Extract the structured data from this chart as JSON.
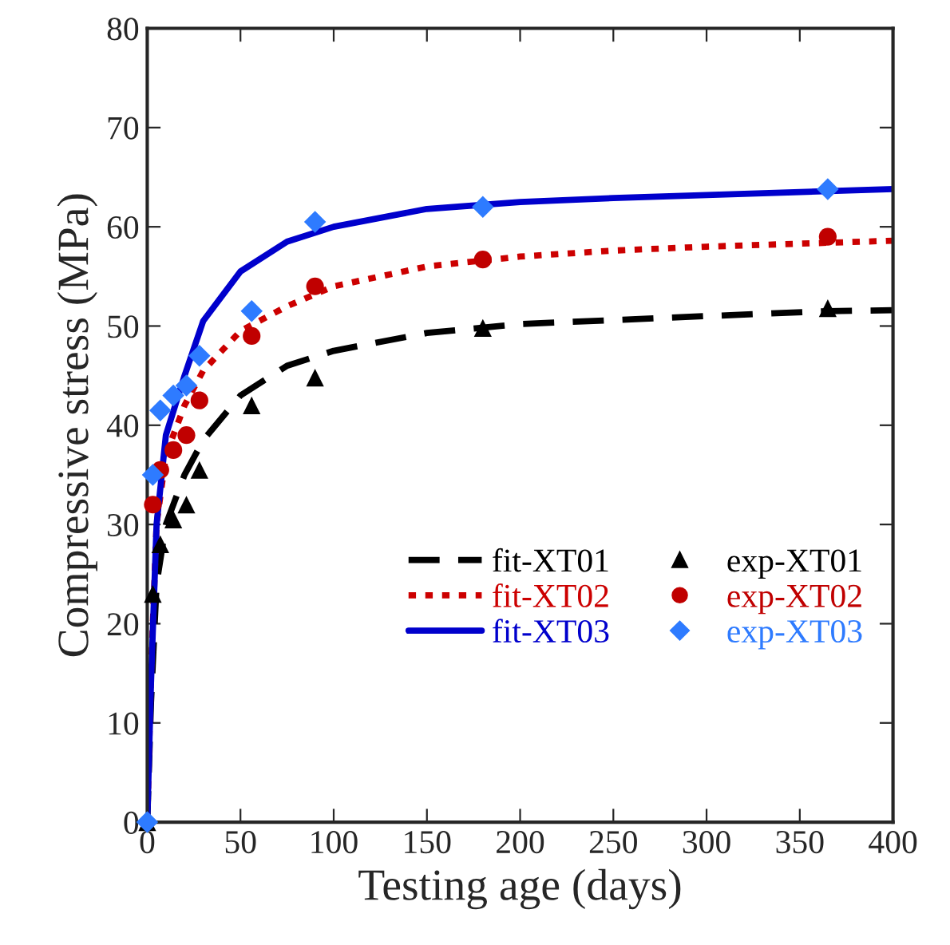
{
  "chart_data": {
    "type": "line",
    "xlabel": "Testing age (days)",
    "ylabel": "Compressive stress (MPa)",
    "xlim": [
      0,
      400
    ],
    "xticks": [
      0,
      50,
      100,
      150,
      200,
      250,
      300,
      350,
      400
    ],
    "ylim": [
      0,
      80
    ],
    "yticks": [
      0,
      10,
      20,
      30,
      40,
      50,
      60,
      70,
      80
    ],
    "grid": false,
    "legend": "bottom right",
    "series": [
      {
        "name": "fit-XT01",
        "line_style": "dashed",
        "marker": "none",
        "color": "#000000",
        "x": [
          0,
          2,
          5,
          10,
          20,
          30,
          50,
          75,
          100,
          150,
          200,
          250,
          300,
          365,
          400
        ],
        "values": [
          0,
          12,
          24,
          30,
          35,
          38.5,
          43,
          46,
          47.5,
          49.3,
          50.2,
          50.6,
          51,
          51.5,
          51.6
        ]
      },
      {
        "name": "fit-XT02",
        "line_style": "dotted",
        "marker": "none",
        "color": "#cc0000",
        "x": [
          0,
          2,
          5,
          10,
          20,
          30,
          50,
          75,
          100,
          150,
          200,
          250,
          300,
          400
        ],
        "values": [
          0,
          15,
          30,
          37,
          42,
          45.5,
          49.5,
          52,
          54,
          56,
          57,
          57.6,
          58,
          58.6
        ]
      },
      {
        "name": "fit-XT03",
        "line_style": "solid",
        "marker": "none",
        "color": "#0000cc",
        "x": [
          0,
          2,
          5,
          10,
          20,
          30,
          50,
          75,
          100,
          150,
          200,
          250,
          300,
          400
        ],
        "values": [
          0,
          14,
          30,
          39,
          45,
          50.5,
          55.5,
          58.5,
          60,
          61.8,
          62.5,
          62.9,
          63.2,
          63.8
        ]
      },
      {
        "name": "exp-XT01",
        "type": "scatter",
        "marker": "triangle",
        "color": "#000000",
        "x": [
          0,
          3,
          7,
          14,
          21,
          28,
          56,
          90,
          180,
          365
        ],
        "values": [
          0,
          23,
          28,
          30.5,
          32,
          35.5,
          42,
          44.8,
          49.8,
          51.8
        ]
      },
      {
        "name": "exp-XT02",
        "type": "scatter",
        "marker": "circle",
        "color": "#c00000",
        "x": [
          3,
          7,
          14,
          21,
          28,
          56,
          90,
          180,
          365
        ],
        "values": [
          32,
          35.5,
          37.5,
          39,
          42.5,
          49,
          54,
          56.7,
          59
        ]
      },
      {
        "name": "exp-XT03",
        "type": "scatter",
        "marker": "diamond",
        "color": "#2e7bff",
        "x": [
          0,
          3,
          7,
          14,
          21,
          28,
          56,
          90,
          180,
          365
        ],
        "values": [
          0,
          35,
          41.5,
          43,
          44,
          47,
          51.5,
          60.5,
          62,
          63.8
        ]
      }
    ]
  }
}
